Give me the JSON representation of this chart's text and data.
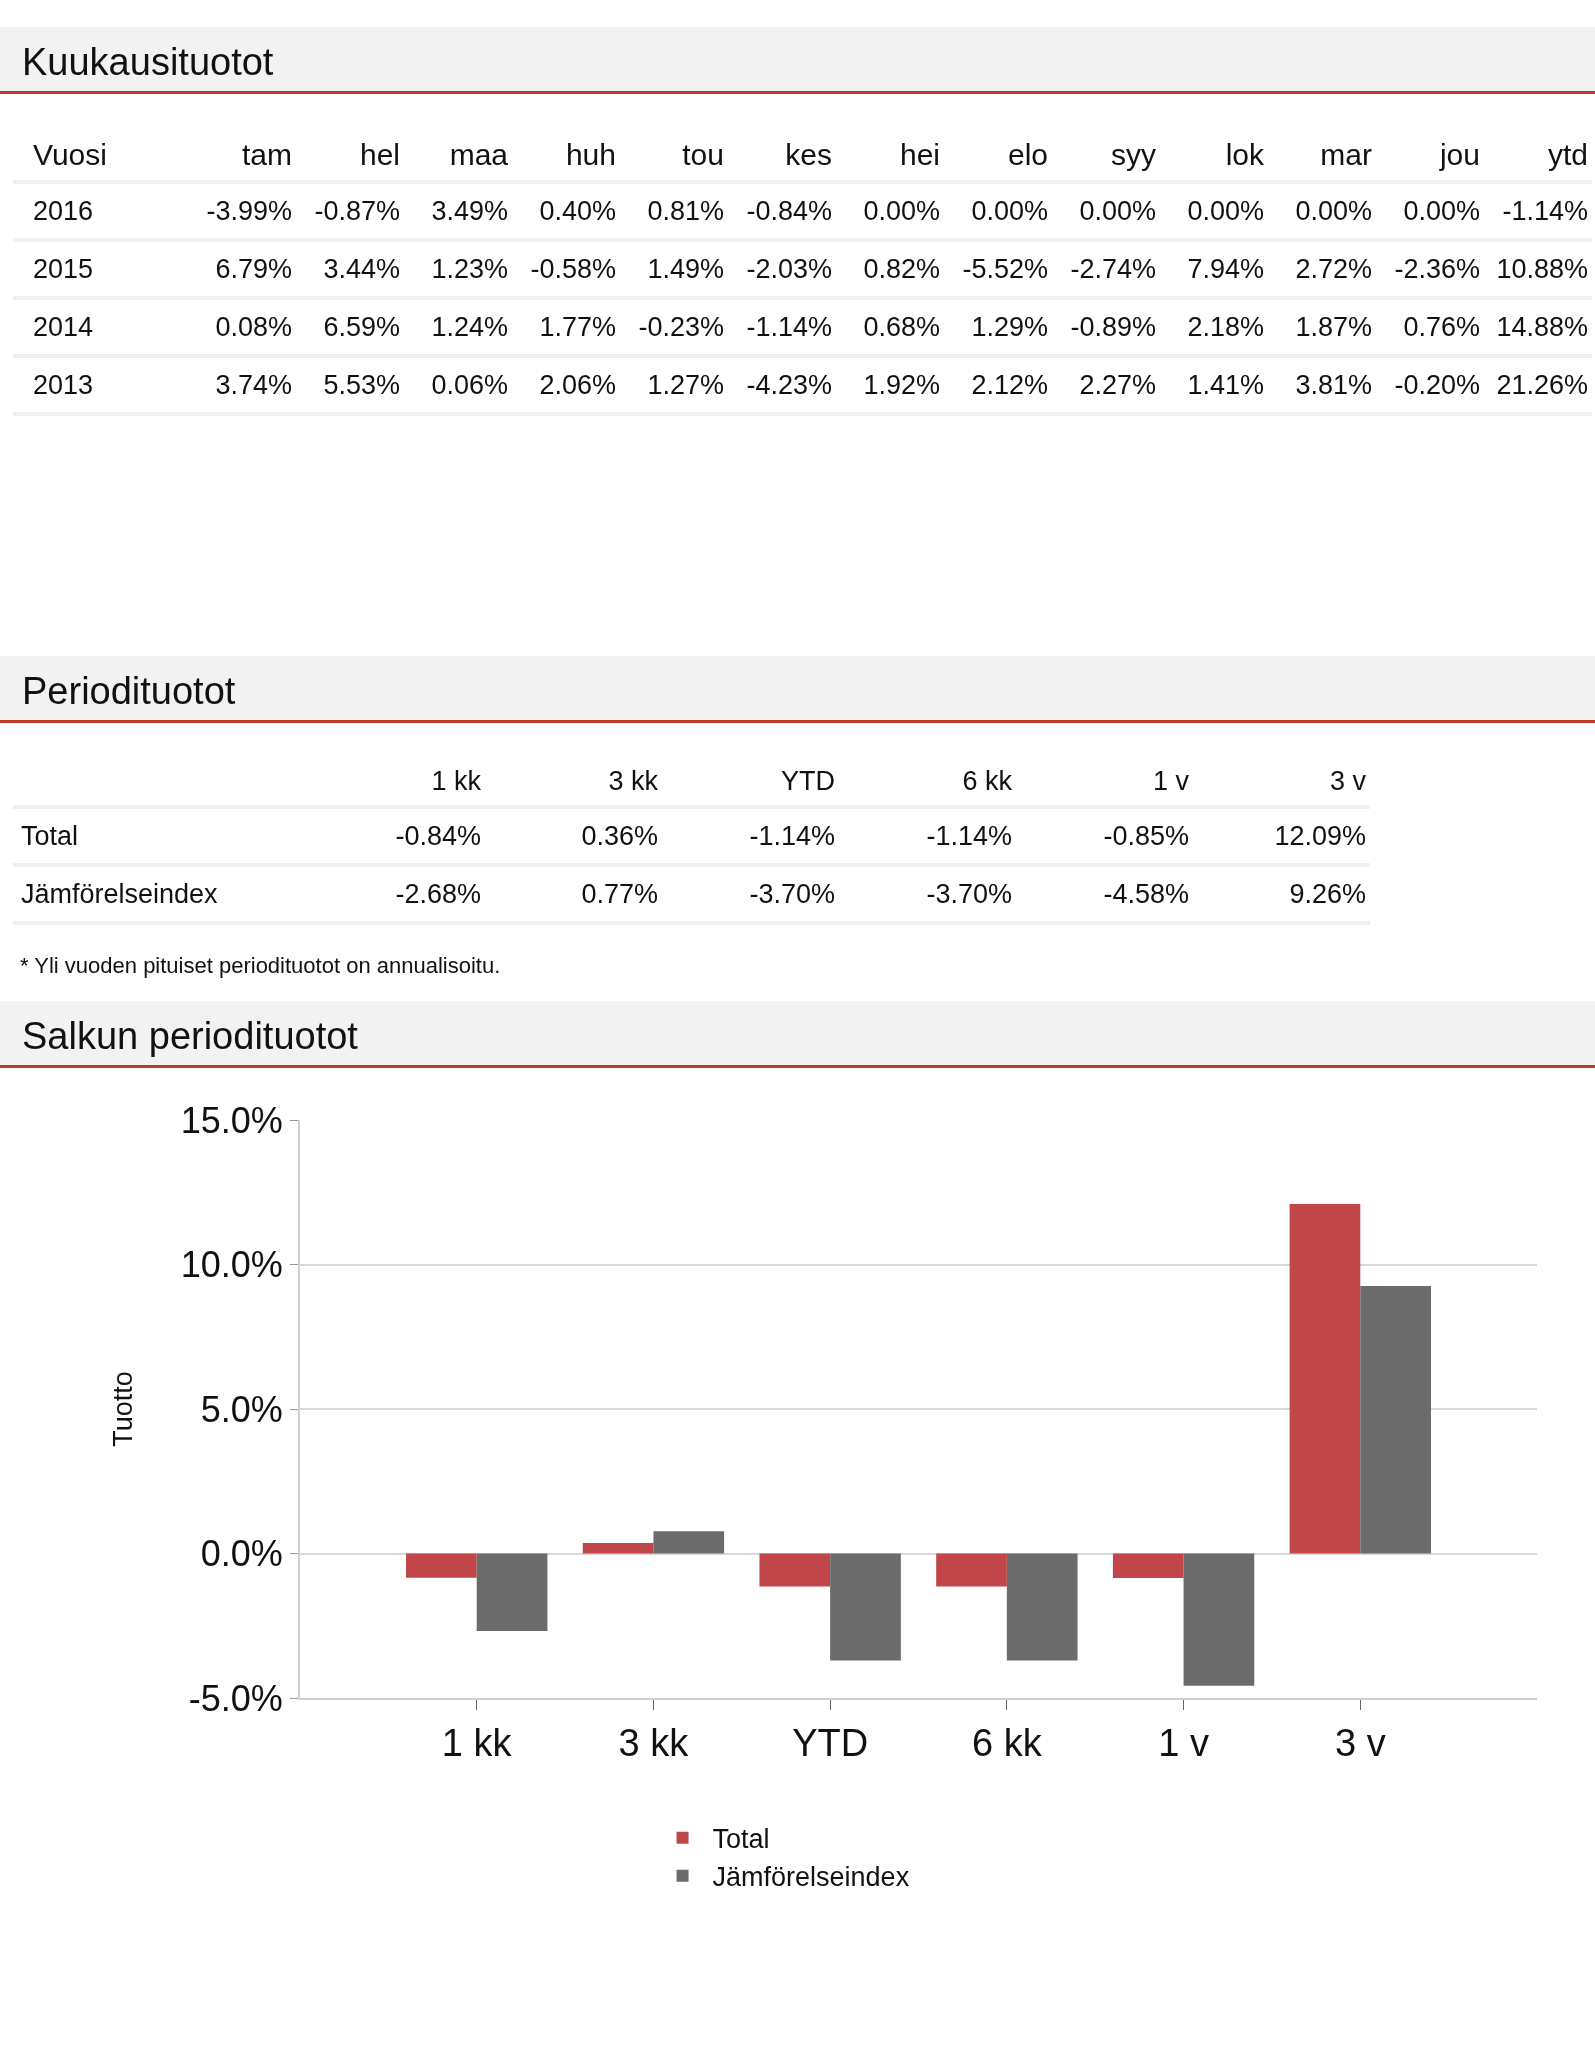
{
  "chart_data": [
    {
      "type": "heatmap",
      "title": "Kuukausituotot",
      "ylabel": "Vuosi",
      "categories": [
        "tam",
        "hel",
        "maa",
        "huh",
        "tou",
        "kes",
        "hei",
        "elo",
        "syy",
        "lok",
        "mar",
        "jou",
        "ytd"
      ],
      "y_categories": [
        "2016",
        "2015",
        "2014",
        "2013"
      ],
      "cells": [
        [
          -3.99,
          -0.87,
          3.49,
          0.4,
          0.81,
          -0.84,
          0.0,
          0.0,
          0.0,
          0.0,
          0.0,
          0.0,
          -1.14
        ],
        [
          6.79,
          3.44,
          1.23,
          -0.58,
          1.49,
          -2.03,
          0.82,
          -5.52,
          -2.74,
          7.94,
          2.72,
          -2.36,
          10.88
        ],
        [
          0.08,
          6.59,
          1.24,
          1.77,
          -0.23,
          -1.14,
          0.68,
          1.29,
          -0.89,
          2.18,
          1.87,
          0.76,
          14.88
        ],
        [
          3.74,
          5.53,
          0.06,
          2.06,
          1.27,
          -4.23,
          1.92,
          2.12,
          2.27,
          1.41,
          3.81,
          -0.2,
          21.26
        ]
      ],
      "cell_labels": [
        [
          "-3.99%",
          "-0.87%",
          "3.49%",
          "0.40%",
          "0.81%",
          "-0.84%",
          "0.00%",
          "0.00%",
          "0.00%",
          "0.00%",
          "0.00%",
          "0.00%",
          "-1.14%"
        ],
        [
          "6.79%",
          "3.44%",
          "1.23%",
          "-0.58%",
          "1.49%",
          "-2.03%",
          "0.82%",
          "-5.52%",
          "-2.74%",
          "7.94%",
          "2.72%",
          "-2.36%",
          "10.88%"
        ],
        [
          "0.08%",
          "6.59%",
          "1.24%",
          "1.77%",
          "-0.23%",
          "-1.14%",
          "0.68%",
          "1.29%",
          "-0.89%",
          "2.18%",
          "1.87%",
          "0.76%",
          "14.88%"
        ],
        [
          "3.74%",
          "5.53%",
          "0.06%",
          "2.06%",
          "1.27%",
          "-4.23%",
          "1.92%",
          "2.12%",
          "2.27%",
          "1.41%",
          "3.81%",
          "-0.20%",
          "21.26%"
        ]
      ]
    },
    {
      "type": "bar",
      "title": "Periodituotot",
      "subtitle": "Salkun periodituotot",
      "ylabel": "Tuotto",
      "categories": [
        "1 kk",
        "3 kk",
        "YTD",
        "6 kk",
        "1 v",
        "3 v"
      ],
      "series": [
        {
          "name": "Total",
          "color": "#c0464a",
          "values": [
            -0.84,
            0.36,
            -1.14,
            -1.14,
            -0.85,
            12.09
          ],
          "value_labels": [
            "-0.84%",
            "0.36%",
            "-1.14%",
            "-1.14%",
            "-0.85%",
            "12.09%"
          ]
        },
        {
          "name": "Jämförelseindex",
          "color": "#6b6b6b",
          "values": [
            -2.68,
            0.77,
            -3.7,
            -3.7,
            -4.58,
            9.26
          ],
          "value_labels": [
            "-2.68%",
            "0.77%",
            "-3.70%",
            "-3.70%",
            "-4.58%",
            "9.26%"
          ]
        }
      ],
      "annotations": [
        "* Yli vuoden pituiset periodituotot on annualisoitu."
      ],
      "ylim": [
        -5,
        15
      ],
      "yticks": [
        {
          "value": -5,
          "label": "-5.0%"
        },
        {
          "value": 0,
          "label": "0.0%"
        },
        {
          "value": 5,
          "label": "5.0%"
        },
        {
          "value": 10,
          "label": "10.0%"
        },
        {
          "value": 15,
          "label": "15.0%"
        }
      ],
      "grid": "y",
      "legend": "bottom"
    }
  ]
}
